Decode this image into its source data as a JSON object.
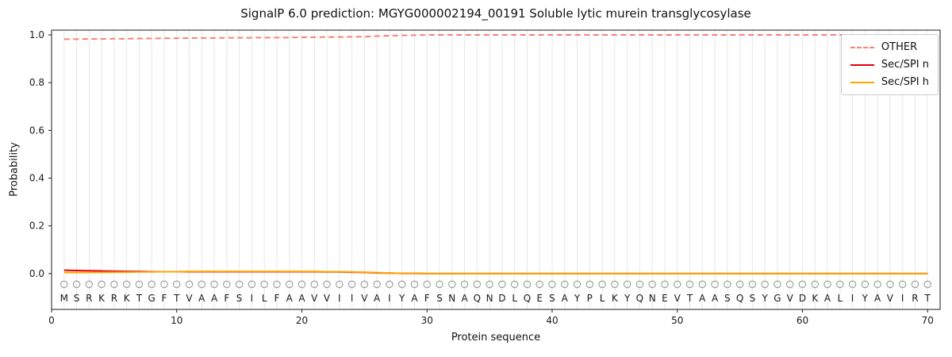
{
  "title": "SignalP 6.0 prediction: MGYG000002194_00191 Soluble lytic murein transglycosylase",
  "axes": {
    "ylabel": "Probability",
    "xlabel": "Protein sequence"
  },
  "colors": {
    "other": "#fa8072",
    "sec_spi_n": "#e8000b",
    "sec_spi_h": "#ffa500",
    "grid": "#e7e7e7",
    "marker": "#9a9a9a",
    "spine": "#1a1a1a"
  },
  "legend": [
    {
      "label": "OTHER",
      "color": "#fa8072",
      "dash": true
    },
    {
      "label": "Sec/SPI n",
      "color": "#e8000b",
      "dash": false
    },
    {
      "label": "Sec/SPI h",
      "color": "#ffa500",
      "dash": false
    }
  ],
  "chart_data": {
    "type": "line",
    "title": "SignalP 6.0 prediction: MGYG000002194_00191 Soluble lytic murein transglycosylase",
    "xlabel": "Protein sequence",
    "ylabel": "Probability",
    "xlim": [
      0,
      71
    ],
    "ylim": [
      -0.15,
      1.02
    ],
    "x_ticks": [
      0,
      10,
      20,
      30,
      40,
      50,
      60,
      70
    ],
    "y_ticks": [
      0.0,
      0.2,
      0.4,
      0.6,
      0.8,
      1.0
    ],
    "grid": "vertical line at every residue position 1-70",
    "legend_position": "upper right",
    "x_start": 1,
    "sequence": [
      "M",
      "S",
      "R",
      "K",
      "R",
      "K",
      "T",
      "G",
      "F",
      "T",
      "V",
      "A",
      "A",
      "F",
      "S",
      "I",
      "L",
      "F",
      "A",
      "A",
      "V",
      "V",
      "I",
      "I",
      "V",
      "A",
      "I",
      "Y",
      "A",
      "F",
      "S",
      "N",
      "A",
      "Q",
      "N",
      "D",
      "L",
      "Q",
      "E",
      "S",
      "A",
      "Y",
      "P",
      "L",
      "K",
      "Y",
      "Q",
      "N",
      "E",
      "V",
      "T",
      "A",
      "A",
      "S",
      "Q",
      "S",
      "Y",
      "G",
      "V",
      "D",
      "K",
      "A",
      "L",
      "I",
      "Y",
      "A",
      "V",
      "I",
      "R",
      "T"
    ],
    "marker_row_y": -0.045,
    "sequence_row_y": -0.1,
    "series": [
      {
        "name": "OTHER",
        "style": "dashed",
        "color": "#fa8072",
        "values": [
          0.982,
          0.982,
          0.983,
          0.983,
          0.984,
          0.984,
          0.985,
          0.985,
          0.986,
          0.986,
          0.987,
          0.987,
          0.987,
          0.988,
          0.988,
          0.988,
          0.989,
          0.989,
          0.989,
          0.99,
          0.99,
          0.991,
          0.991,
          0.992,
          0.993,
          0.995,
          0.997,
          0.998,
          0.999,
          1.0,
          1.0,
          1.0,
          1.0,
          1.0,
          1.0,
          1.0,
          1.0,
          1.0,
          1.0,
          1.0,
          1.0,
          1.0,
          1.0,
          1.0,
          1.0,
          1.0,
          1.0,
          1.0,
          1.0,
          1.0,
          1.0,
          1.0,
          1.0,
          1.0,
          1.0,
          1.0,
          1.0,
          1.0,
          1.0,
          1.0,
          1.0,
          1.0,
          1.0,
          1.0,
          1.0,
          1.0,
          1.0,
          1.0,
          1.0,
          1.0
        ]
      },
      {
        "name": "Sec/SPI n",
        "style": "solid",
        "color": "#e8000b",
        "values": [
          0.014,
          0.013,
          0.012,
          0.011,
          0.01,
          0.009,
          0.009,
          0.008,
          0.008,
          0.008,
          0.008,
          0.008,
          0.008,
          0.008,
          0.008,
          0.008,
          0.008,
          0.008,
          0.008,
          0.008,
          0.008,
          0.007,
          0.007,
          0.006,
          0.005,
          0.003,
          0.002,
          0.001,
          0.001,
          0.0,
          0.0,
          0.0,
          0.0,
          0.0,
          0.0,
          0.0,
          0.0,
          0.0,
          0.0,
          0.0,
          0.0,
          0.0,
          0.0,
          0.0,
          0.0,
          0.0,
          0.0,
          0.0,
          0.0,
          0.0,
          0.0,
          0.0,
          0.0,
          0.0,
          0.0,
          0.0,
          0.0,
          0.0,
          0.0,
          0.0,
          0.0,
          0.0,
          0.0,
          0.0,
          0.0,
          0.0,
          0.0,
          0.0,
          0.0,
          0.0
        ]
      },
      {
        "name": "Sec/SPI h",
        "style": "solid",
        "color": "#ffa500",
        "values": [
          0.004,
          0.004,
          0.005,
          0.005,
          0.006,
          0.006,
          0.007,
          0.007,
          0.008,
          0.008,
          0.009,
          0.009,
          0.009,
          0.009,
          0.009,
          0.009,
          0.009,
          0.009,
          0.009,
          0.009,
          0.009,
          0.008,
          0.008,
          0.007,
          0.006,
          0.004,
          0.002,
          0.001,
          0.001,
          0.0,
          0.0,
          0.0,
          0.0,
          0.0,
          0.0,
          0.0,
          0.0,
          0.0,
          0.0,
          0.0,
          0.0,
          0.0,
          0.0,
          0.0,
          0.0,
          0.0,
          0.0,
          0.0,
          0.0,
          0.0,
          0.0,
          0.0,
          0.0,
          0.0,
          0.0,
          0.0,
          0.0,
          0.0,
          0.0,
          0.0,
          0.0,
          0.0,
          0.0,
          0.0,
          0.0,
          0.0,
          0.0,
          0.0,
          0.0,
          0.0
        ]
      }
    ]
  }
}
